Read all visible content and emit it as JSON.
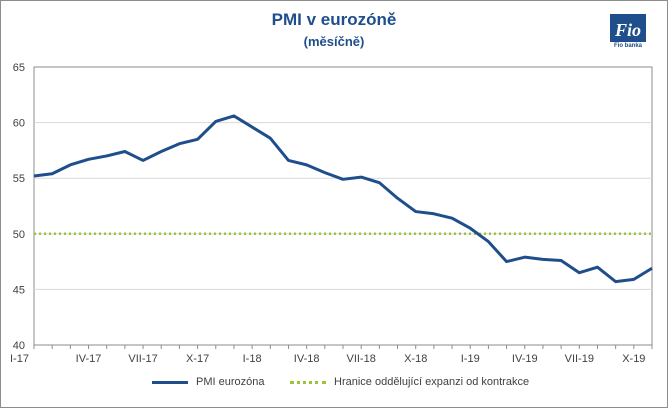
{
  "title": "PMI v eurozóně",
  "subtitle": "(měsíčně)",
  "logo_text": "Fio banka",
  "chart_data": {
    "type": "line",
    "title": "PMI v eurozóně",
    "subtitle": "(měsíčně)",
    "xlabel": "",
    "ylabel": "",
    "ylim": [
      40,
      65
    ],
    "yticks": [
      40,
      45,
      50,
      55,
      60,
      65
    ],
    "grid": true,
    "legend": "bottom",
    "x": [
      "2017-01",
      "2017-02",
      "2017-03",
      "2017-04",
      "2017-05",
      "2017-06",
      "2017-07",
      "2017-08",
      "2017-09",
      "2017-10",
      "2017-11",
      "2017-12",
      "2018-01",
      "2018-02",
      "2018-03",
      "2018-04",
      "2018-05",
      "2018-06",
      "2018-07",
      "2018-08",
      "2018-09",
      "2018-10",
      "2018-11",
      "2018-12",
      "2019-01",
      "2019-02",
      "2019-03",
      "2019-04",
      "2019-05",
      "2019-06",
      "2019-07",
      "2019-08",
      "2019-09",
      "2019-10",
      "2019-11"
    ],
    "xtick_labels": [
      "I-17",
      "IV-17",
      "VII-17",
      "X-17",
      "I-18",
      "IV-18",
      "VII-18",
      "X-18",
      "I-19",
      "IV-19",
      "VII-19",
      "X-19"
    ],
    "series": [
      {
        "name": "PMI eurozóna",
        "color": "#1f4e8c",
        "values": [
          55.2,
          55.4,
          56.2,
          56.7,
          57.0,
          57.4,
          56.6,
          57.4,
          58.1,
          58.5,
          60.1,
          60.6,
          59.6,
          58.6,
          56.6,
          56.2,
          55.5,
          54.9,
          55.1,
          54.6,
          53.2,
          52.0,
          51.8,
          51.4,
          50.5,
          49.3,
          47.5,
          47.9,
          47.7,
          47.6,
          46.5,
          47.0,
          45.7,
          45.9,
          46.9
        ]
      },
      {
        "name": "Hranice oddělující expanzi od kontrakce",
        "color": "#9ac43c",
        "style": "dotted",
        "values": [
          50,
          50,
          50,
          50,
          50,
          50,
          50,
          50,
          50,
          50,
          50,
          50,
          50,
          50,
          50,
          50,
          50,
          50,
          50,
          50,
          50,
          50,
          50,
          50,
          50,
          50,
          50,
          50,
          50,
          50,
          50,
          50,
          50,
          50,
          50
        ]
      }
    ]
  }
}
